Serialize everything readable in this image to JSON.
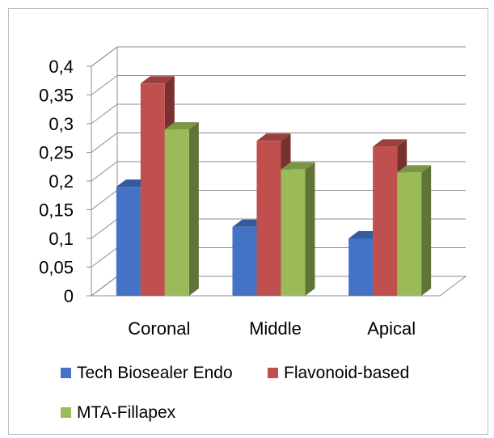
{
  "chart_data": {
    "type": "bar",
    "style": "3d-clustered-column",
    "categories": [
      "Coronal",
      "Middle",
      "Apical"
    ],
    "series": [
      {
        "name": "Tech Biosealer Endo",
        "color": "#4472c4",
        "values": [
          0.19,
          0.12,
          0.1
        ]
      },
      {
        "name": "Flavonoid-based",
        "color": "#c0504d",
        "values": [
          0.37,
          0.27,
          0.26
        ]
      },
      {
        "name": "MTA-Fillapex",
        "color": "#9bbb59",
        "values": [
          0.29,
          0.22,
          0.215
        ]
      }
    ],
    "yticks": [
      "0",
      "0,05",
      "0,1",
      "0,15",
      "0,2",
      "0,25",
      "0,3",
      "0,35",
      "0,4"
    ],
    "ylim": [
      0,
      0.4
    ],
    "grid": true,
    "legend_position": "bottom",
    "title": "",
    "xlabel": "",
    "ylabel": ""
  }
}
